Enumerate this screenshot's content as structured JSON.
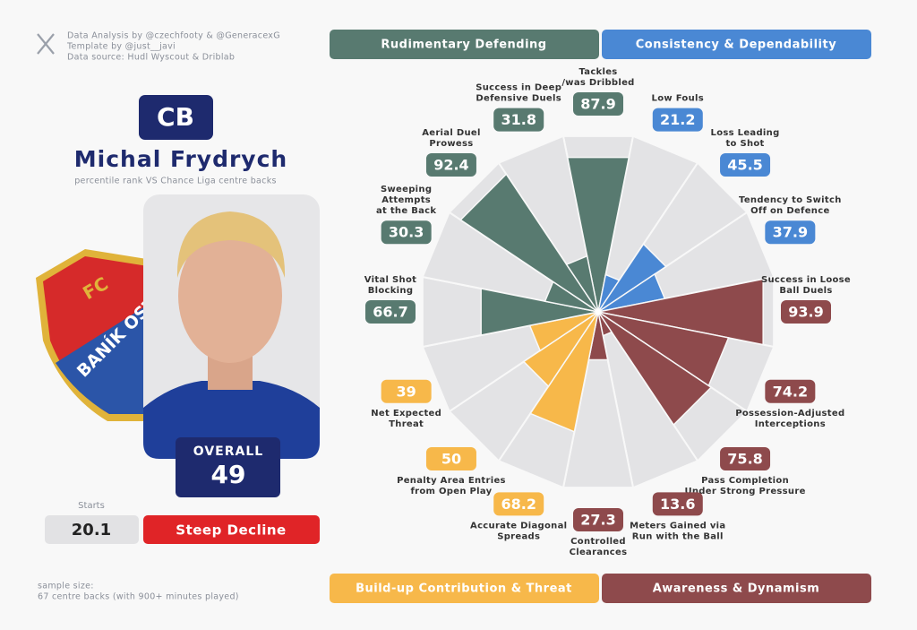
{
  "credits": [
    "Data Analysis by @czechfooty & @GeneracexG",
    "Template by @just__javi",
    "Data source: Hudl Wyscout & Driblab"
  ],
  "player": {
    "position": "CB",
    "name": "Michal Frydrych",
    "subtitle": "percentile rank VS Chance Liga centre backs",
    "overall_label": "OVERALL",
    "overall": 49,
    "starts_label": "Starts",
    "starts": 20.1,
    "trend": "Steep Decline"
  },
  "crest": {
    "top": "FC",
    "name": "BANÍK OST"
  },
  "sample": [
    "sample size:",
    "67 centre backs (with 900+ minutes played)"
  ],
  "chart_data": {
    "type": "pizza",
    "groups": [
      {
        "name": "Rudimentary Defending",
        "color": "#587a70"
      },
      {
        "name": "Consistency & Dependability",
        "color": "#4a88d4"
      },
      {
        "name": "Build-up Contribution & Threat",
        "color": "#f7b84a"
      },
      {
        "name": "Awareness & Dynamism",
        "color": "#8e4a4c"
      }
    ],
    "categories": [
      "Tackles\n/was Dribbled",
      "Low Fouls",
      "Loss Leading\nto Shot",
      "Tendency to Switch\nOff on Defence",
      "Success in Loose\nBall Duels",
      "Possession-Adjusted\nInterceptions",
      "Pass Completion\nUnder Strong Pressure",
      "Meters Gained via\nRun with the Ball",
      "Controlled\nClearances",
      "Accurate Diagonal\nSpreads",
      "Penalty Area Entries\nfrom Open Play",
      "Net Expected\nThreat",
      "Vital Shot\nBlocking",
      "Sweeping\nAttempts\nat the Back",
      "Aerial Duel\nProwess",
      "Success in Deep\nDefensive Duels"
    ],
    "values": [
      87.9,
      21.2,
      45.5,
      37.9,
      93.9,
      74.2,
      75.8,
      13.6,
      27.3,
      68.2,
      50,
      39,
      66.7,
      30.3,
      92.4,
      31.8
    ],
    "colors": [
      "#587a70",
      "#4a88d4",
      "#4a88d4",
      "#4a88d4",
      "#8e4a4c",
      "#8e4a4c",
      "#8e4a4c",
      "#8e4a4c",
      "#8e4a4c",
      "#f7b84a",
      "#f7b84a",
      "#f7b84a",
      "#587a70",
      "#587a70",
      "#587a70",
      "#587a70"
    ],
    "rlim": [
      0,
      100
    ]
  }
}
